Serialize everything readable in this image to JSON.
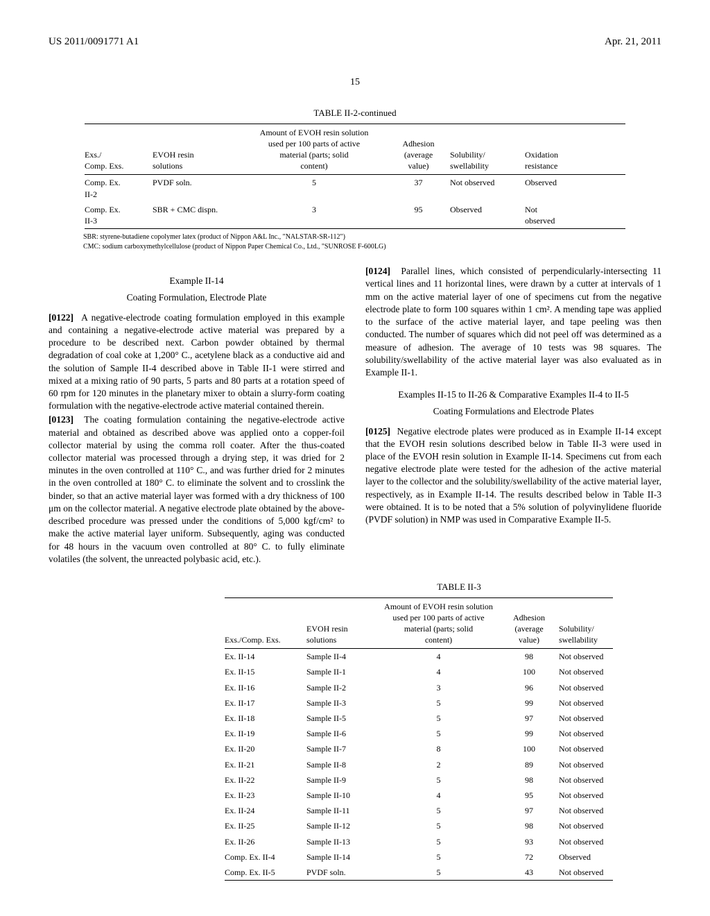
{
  "header": {
    "left": "US 2011/0091771 A1",
    "right": "Apr. 21, 2011"
  },
  "page_number": "15",
  "table_top": {
    "caption": "TABLE II-2-continued",
    "columns": {
      "c1": "Exs./\nComp. Exs.",
      "c2": "EVOH resin\nsolutions",
      "c3": "Amount of EVOH resin solution\nused per 100 parts of active\nmaterial (parts; solid\ncontent)",
      "c4": "Adhesion\n(average\nvalue)",
      "c5": "Solubility/\nswellability",
      "c6": "Oxidation\nresistance"
    },
    "rows": [
      {
        "c1": "Comp. Ex.\nII-2",
        "c2": "PVDF soln.",
        "c3": "5",
        "c4": "37",
        "c5": "Not observed",
        "c6": "Observed"
      },
      {
        "c1": "Comp. Ex.\nII-3",
        "c2": "SBR + CMC dispn.",
        "c3": "3",
        "c4": "95",
        "c5": "Observed",
        "c6": "Not\nobserved"
      }
    ],
    "footnotes": [
      "SBR: styrene-butadiene copolymer latex (product of Nippon A&L Inc., \"NALSTAR-SR-112\")",
      "CMC: sodium carboxymethylcellulose (product of Nippon Paper Chemical Co., Ltd., \"SUNROSE F-600LG)"
    ]
  },
  "body": {
    "ex14_head": "Example II-14",
    "ex14_sub": "Coating Formulation, Electrode Plate",
    "p0122_num": "[0122]",
    "p0122": "A negative-electrode coating formulation employed in this example and containing a negative-electrode active material was prepared by a procedure to be described next. Carbon powder obtained by thermal degradation of coal coke at 1,200° C., acetylene black as a conductive aid and the solution of Sample II-4 described above in Table II-1 were stirred and mixed at a mixing ratio of 90 parts, 5 parts and 80 parts at a rotation speed of 60 rpm for 120 minutes in the planetary mixer to obtain a slurry-form coating formulation with the negative-electrode active material contained therein.",
    "p0123_num": "[0123]",
    "p0123": "The coating formulation containing the negative-electrode active material and obtained as described above was applied onto a copper-foil collector material by using the comma roll coater. After the thus-coated collector material was processed through a drying step, it was dried for 2 minutes in the oven controlled at 110° C., and was further dried for 2 minutes in the oven controlled at 180° C. to eliminate the solvent and to crosslink the binder, so that an active material layer was formed with a dry thickness of 100 μm on the collector material. A negative electrode plate obtained by the above-described procedure was pressed under the conditions of 5,000 kgf/cm² to make the active material layer uniform. Subsequently, aging was conducted for 48 hours in the vacuum oven controlled at 80° C. to fully eliminate volatiles (the solvent, the unreacted polybasic acid, etc.).",
    "p0124_num": "[0124]",
    "p0124": "Parallel lines, which consisted of perpendicularly-intersecting 11 vertical lines and 11 horizontal lines, were drawn by a cutter at intervals of 1 mm on the active material layer of one of specimens cut from the negative electrode plate to form 100 squares within 1 cm². A mending tape was applied to the surface of the active material layer, and tape peeling was then conducted. The number of squares which did not peel off was determined as a measure of adhesion. The average of 10 tests was 98 squares. The solubility/swellability of the active material layer was also evaluated as in Example II-1.",
    "ex15_head": "Examples II-15 to II-26 & Comparative Examples II-4 to II-5",
    "ex15_sub": "Coating Formulations and Electrode Plates",
    "p0125_num": "[0125]",
    "p0125": "Negative electrode plates were produced as in Example II-14 except that the EVOH resin solutions described below in Table II-3 were used in place of the EVOH resin solution in Example II-14. Specimens cut from each negative electrode plate were tested for the adhesion of the active material layer to the collector and the solubility/swellability of the active material layer, respectively, as in Example II-14. The results described below in Table II-3 were obtained. It is to be noted that a 5% solution of polyvinylidene fluoride (PVDF solution) in NMP was used in Comparative Example II-5."
  },
  "table_bottom": {
    "caption": "TABLE II-3",
    "columns": {
      "c1": "Exs./Comp. Exs.",
      "c2": "EVOH resin\nsolutions",
      "c3": "Amount of EVOH resin solution\nused per 100 parts of active\nmaterial (parts; solid\ncontent)",
      "c4": "Adhesion\n(average\nvalue)",
      "c5": "Solubility/\nswellability"
    },
    "rows": [
      {
        "c1": "Ex. II-14",
        "c2": "Sample II-4",
        "c3": "4",
        "c4": "98",
        "c5": "Not observed"
      },
      {
        "c1": "Ex. II-15",
        "c2": "Sample II-1",
        "c3": "4",
        "c4": "100",
        "c5": "Not observed"
      },
      {
        "c1": "Ex. II-16",
        "c2": "Sample II-2",
        "c3": "3",
        "c4": "96",
        "c5": "Not observed"
      },
      {
        "c1": "Ex. II-17",
        "c2": "Sample II-3",
        "c3": "5",
        "c4": "99",
        "c5": "Not observed"
      },
      {
        "c1": "Ex. II-18",
        "c2": "Sample II-5",
        "c3": "5",
        "c4": "97",
        "c5": "Not observed"
      },
      {
        "c1": "Ex. II-19",
        "c2": "Sample II-6",
        "c3": "5",
        "c4": "99",
        "c5": "Not observed"
      },
      {
        "c1": "Ex. II-20",
        "c2": "Sample II-7",
        "c3": "8",
        "c4": "100",
        "c5": "Not observed"
      },
      {
        "c1": "Ex. II-21",
        "c2": "Sample II-8",
        "c3": "2",
        "c4": "89",
        "c5": "Not observed"
      },
      {
        "c1": "Ex. II-22",
        "c2": "Sample II-9",
        "c3": "5",
        "c4": "98",
        "c5": "Not observed"
      },
      {
        "c1": "Ex. II-23",
        "c2": "Sample II-10",
        "c3": "4",
        "c4": "95",
        "c5": "Not observed"
      },
      {
        "c1": "Ex. II-24",
        "c2": "Sample II-11",
        "c3": "5",
        "c4": "97",
        "c5": "Not observed"
      },
      {
        "c1": "Ex. II-25",
        "c2": "Sample II-12",
        "c3": "5",
        "c4": "98",
        "c5": "Not observed"
      },
      {
        "c1": "Ex. II-26",
        "c2": "Sample II-13",
        "c3": "5",
        "c4": "93",
        "c5": "Not observed"
      },
      {
        "c1": "Comp. Ex. II-4",
        "c2": "Sample II-14",
        "c3": "5",
        "c4": "72",
        "c5": "Observed"
      },
      {
        "c1": "Comp. Ex. II-5",
        "c2": "PVDF soln.",
        "c3": "5",
        "c4": "43",
        "c5": "Not observed"
      }
    ]
  }
}
